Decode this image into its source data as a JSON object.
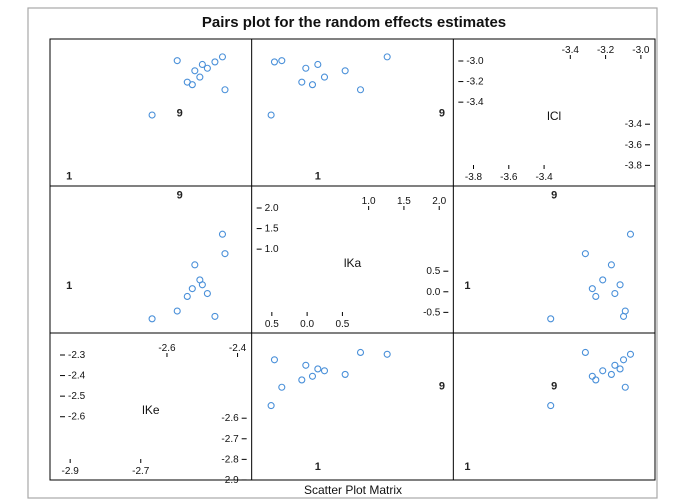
{
  "chart_data": {
    "type": "scatter",
    "title": "Pairs plot for the random effects estimates",
    "xlabel": "Scatter Plot Matrix",
    "variables": [
      {
        "name": "lCl",
        "ticks_a": [
          "-3.4",
          "-3.2",
          "-3.0"
        ],
        "ticks_b": [
          "-3.8",
          "-3.6",
          "-3.4"
        ],
        "vticks_a": [
          "-3.0",
          "-3.2",
          "-3.4"
        ],
        "vticks_b": [
          "-3.4",
          "-3.6",
          "-3.8"
        ],
        "range": [
          -3.9,
          -2.9
        ]
      },
      {
        "name": "lKa",
        "ticks_a": [
          "1.0",
          "1.5",
          "2.0"
        ],
        "ticks_b": [
          "0.5",
          "0.0",
          "0.5"
        ],
        "vticks_a": [
          "2.0",
          "1.5",
          "1.0"
        ],
        "vticks_b": [
          "0.5",
          "0.0",
          "-0.5"
        ],
        "range": [
          -0.5,
          2.1
        ]
      },
      {
        "name": "lKe",
        "ticks_a": [
          "-2.6",
          "-2.4"
        ],
        "ticks_b": [
          "-2.9",
          "-2.7"
        ],
        "vticks_a": [
          "-2.3",
          "-2.4",
          "-2.5",
          "-2.6"
        ],
        "vticks_b": [
          "-2.6",
          "-2.7",
          "-2.8",
          "-2.9"
        ],
        "range": [
          -2.95,
          -2.26
        ]
      }
    ],
    "point_labels": [
      "1",
      "9"
    ],
    "observations": [
      {
        "lCl": -3.9,
        "lKa": 0.28,
        "lKe": -2.93,
        "label": "1"
      },
      {
        "lCl": -3.4,
        "lKa": 2.14,
        "lKe": -2.49,
        "label": "9"
      },
      {
        "lCl": -3.42,
        "lKa": -0.42,
        "lKe": -2.6
      },
      {
        "lCl": -3.22,
        "lKa": 0.92,
        "lKe": -2.31
      },
      {
        "lCl": -3.18,
        "lKa": 0.2,
        "lKe": -2.44
      },
      {
        "lCl": -3.12,
        "lKa": 0.38,
        "lKe": -2.41
      },
      {
        "lCl": -3.16,
        "lKa": 0.04,
        "lKe": -2.46
      },
      {
        "lCl": -3.05,
        "lKa": 0.1,
        "lKe": -2.38
      },
      {
        "lCl": -2.96,
        "lKa": 1.32,
        "lKe": -2.32
      },
      {
        "lCl": -3.02,
        "lKa": 0.28,
        "lKe": -2.4
      },
      {
        "lCl": -3.07,
        "lKa": 0.69,
        "lKe": -2.43
      },
      {
        "lCl": -2.99,
        "lKa": -0.26,
        "lKe": -2.5
      },
      {
        "lCl": -3.0,
        "lKa": -0.37,
        "lKe": -2.35
      }
    ],
    "marker_color": "#4a90d9",
    "grid": false,
    "legend": "none"
  }
}
